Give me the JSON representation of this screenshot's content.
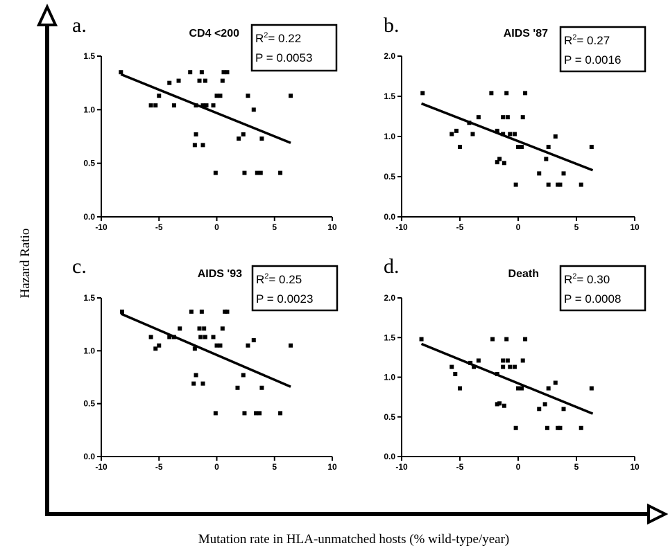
{
  "figure": {
    "ylabel": "Hazard Ratio",
    "xlabel": "Mutation rate in HLA-unmatched hosts  (% wild-type/year)"
  },
  "chart_data": [
    {
      "type": "scatter",
      "panel_letter": "a.",
      "title": "CD4 <200",
      "stats": {
        "r2_prefix": "R",
        "r2_sup": "2",
        "r2_value": "= 0.22",
        "p_text": "P = 0.0053"
      },
      "xlim": [
        -10,
        10
      ],
      "ylim": [
        0.0,
        1.5
      ],
      "xticks": [
        -10,
        -5,
        0,
        5,
        10
      ],
      "yticks": [
        0.0,
        0.5,
        1.0,
        1.5
      ],
      "xtick_labels": [
        "-10",
        "-5",
        "0",
        "5",
        "10"
      ],
      "ytick_labels": [
        "0.0",
        "0.5",
        "1.0",
        "1.5"
      ],
      "points": [
        [
          -8.3,
          1.35
        ],
        [
          -5.7,
          1.04
        ],
        [
          -5.3,
          1.04
        ],
        [
          -5.0,
          1.13
        ],
        [
          -4.1,
          1.25
        ],
        [
          -3.7,
          1.04
        ],
        [
          -3.3,
          1.27
        ],
        [
          -2.3,
          1.35
        ],
        [
          -1.8,
          1.04
        ],
        [
          -1.8,
          0.77
        ],
        [
          -1.9,
          0.67
        ],
        [
          -1.5,
          1.27
        ],
        [
          -1.3,
          1.35
        ],
        [
          -1.2,
          1.04
        ],
        [
          -1.0,
          1.27
        ],
        [
          -0.9,
          1.04
        ],
        [
          -1.2,
          0.67
        ],
        [
          -0.3,
          1.04
        ],
        [
          0.0,
          1.13
        ],
        [
          0.3,
          1.13
        ],
        [
          0.5,
          1.27
        ],
        [
          0.6,
          1.35
        ],
        [
          0.9,
          1.35
        ],
        [
          -0.1,
          0.41
        ],
        [
          1.9,
          0.73
        ],
        [
          2.3,
          0.77
        ],
        [
          2.4,
          0.41
        ],
        [
          2.7,
          1.13
        ],
        [
          3.2,
          1.0
        ],
        [
          3.5,
          0.41
        ],
        [
          3.8,
          0.41
        ],
        [
          3.9,
          0.73
        ],
        [
          5.5,
          0.41
        ],
        [
          6.4,
          1.13
        ]
      ],
      "fit": {
        "x": [
          -8.3,
          6.4
        ],
        "y": [
          1.33,
          0.69
        ]
      }
    },
    {
      "type": "scatter",
      "panel_letter": "b.",
      "title": "AIDS '87",
      "stats": {
        "r2_prefix": "R",
        "r2_sup": "2",
        "r2_value": "= 0.27",
        "p_text": "P = 0.0016"
      },
      "xlim": [
        -10,
        10
      ],
      "ylim": [
        0.0,
        2.0
      ],
      "xticks": [
        -10,
        -5,
        0,
        5,
        10
      ],
      "yticks": [
        0.0,
        0.5,
        1.0,
        1.5,
        2.0
      ],
      "xtick_labels": [
        "-10",
        "-5",
        "0",
        "5",
        "10"
      ],
      "ytick_labels": [
        "0.0",
        "0.5",
        "1.0",
        "1.5",
        "2.0"
      ],
      "points": [
        [
          -8.2,
          1.54
        ],
        [
          -5.7,
          1.03
        ],
        [
          -5.3,
          1.07
        ],
        [
          -5.0,
          0.87
        ],
        [
          -4.2,
          1.17
        ],
        [
          -3.9,
          1.03
        ],
        [
          -3.4,
          1.24
        ],
        [
          -2.3,
          1.54
        ],
        [
          -1.8,
          1.07
        ],
        [
          -1.8,
          0.68
        ],
        [
          -1.6,
          0.72
        ],
        [
          -1.3,
          1.03
        ],
        [
          -1.3,
          1.24
        ],
        [
          -1.2,
          0.67
        ],
        [
          -1.0,
          1.54
        ],
        [
          -0.9,
          1.24
        ],
        [
          -0.7,
          1.03
        ],
        [
          -0.3,
          1.03
        ],
        [
          0.0,
          0.87
        ],
        [
          0.3,
          0.87
        ],
        [
          0.4,
          1.24
        ],
        [
          0.6,
          1.54
        ],
        [
          -0.2,
          0.4
        ],
        [
          1.8,
          0.54
        ],
        [
          2.4,
          0.72
        ],
        [
          2.6,
          0.4
        ],
        [
          2.6,
          0.87
        ],
        [
          3.2,
          1.0
        ],
        [
          3.4,
          0.4
        ],
        [
          3.6,
          0.4
        ],
        [
          3.9,
          0.54
        ],
        [
          5.4,
          0.4
        ],
        [
          6.3,
          0.87
        ]
      ],
      "fit": {
        "x": [
          -8.3,
          6.4
        ],
        "y": [
          1.41,
          0.58
        ]
      }
    },
    {
      "type": "scatter",
      "panel_letter": "c.",
      "title": "AIDS '93",
      "stats": {
        "r2_prefix": "R",
        "r2_sup": "2",
        "r2_value": "= 0.25",
        "p_text": "P = 0.0023"
      },
      "xlim": [
        -10,
        10
      ],
      "ylim": [
        0.0,
        1.5
      ],
      "xticks": [
        -10,
        -5,
        0,
        5,
        10
      ],
      "yticks": [
        0.0,
        0.5,
        1.0,
        1.5
      ],
      "xtick_labels": [
        "-10",
        "-5",
        "0",
        "5",
        "10"
      ],
      "ytick_labels": [
        "0.0",
        "0.5",
        "1.0",
        "1.5"
      ],
      "points": [
        [
          -8.2,
          1.37
        ],
        [
          -5.7,
          1.13
        ],
        [
          -5.3,
          1.02
        ],
        [
          -5.0,
          1.05
        ],
        [
          -4.1,
          1.13
        ],
        [
          -3.7,
          1.13
        ],
        [
          -3.2,
          1.21
        ],
        [
          -2.2,
          1.37
        ],
        [
          -1.9,
          1.02
        ],
        [
          -1.8,
          0.77
        ],
        [
          -2.0,
          0.69
        ],
        [
          -1.5,
          1.21
        ],
        [
          -1.4,
          1.13
        ],
        [
          -1.3,
          1.37
        ],
        [
          -1.1,
          1.21
        ],
        [
          -1.0,
          1.13
        ],
        [
          -1.2,
          0.69
        ],
        [
          -0.3,
          1.13
        ],
        [
          0.0,
          1.05
        ],
        [
          0.3,
          1.05
        ],
        [
          0.5,
          1.21
        ],
        [
          0.7,
          1.37
        ],
        [
          0.9,
          1.37
        ],
        [
          -0.1,
          0.41
        ],
        [
          1.8,
          0.65
        ],
        [
          2.3,
          0.77
        ],
        [
          2.4,
          0.41
        ],
        [
          2.7,
          1.05
        ],
        [
          3.2,
          1.1
        ],
        [
          3.4,
          0.41
        ],
        [
          3.7,
          0.41
        ],
        [
          3.9,
          0.65
        ],
        [
          5.5,
          0.41
        ],
        [
          6.4,
          1.05
        ]
      ],
      "fit": {
        "x": [
          -8.3,
          6.4
        ],
        "y": [
          1.35,
          0.66
        ]
      }
    },
    {
      "type": "scatter",
      "panel_letter": "d.",
      "title": "Death",
      "stats": {
        "r2_prefix": "R",
        "r2_sup": "2",
        "r2_value": "= 0.30",
        "p_text": "P = 0.0008"
      },
      "xlim": [
        -10,
        10
      ],
      "ylim": [
        0.0,
        2.0
      ],
      "xticks": [
        -10,
        -5,
        0,
        5,
        10
      ],
      "yticks": [
        0.0,
        0.5,
        1.0,
        1.5,
        2.0
      ],
      "xtick_labels": [
        "-10",
        "-5",
        "0",
        "5",
        "10"
      ],
      "ytick_labels": [
        "0.0",
        "0.5",
        "1.0",
        "1.5",
        "2.0"
      ],
      "points": [
        [
          -8.3,
          1.48
        ],
        [
          -5.7,
          1.13
        ],
        [
          -5.4,
          1.04
        ],
        [
          -5.0,
          0.86
        ],
        [
          -4.1,
          1.18
        ],
        [
          -3.8,
          1.13
        ],
        [
          -3.4,
          1.21
        ],
        [
          -2.2,
          1.48
        ],
        [
          -1.8,
          1.04
        ],
        [
          -1.8,
          0.66
        ],
        [
          -1.6,
          0.67
        ],
        [
          -1.3,
          1.21
        ],
        [
          -1.3,
          1.13
        ],
        [
          -1.2,
          0.64
        ],
        [
          -1.0,
          1.48
        ],
        [
          -0.9,
          1.21
        ],
        [
          -0.7,
          1.13
        ],
        [
          -0.3,
          1.13
        ],
        [
          0.0,
          0.86
        ],
        [
          0.3,
          0.86
        ],
        [
          0.4,
          1.21
        ],
        [
          0.6,
          1.48
        ],
        [
          -0.2,
          0.36
        ],
        [
          1.8,
          0.6
        ],
        [
          2.3,
          0.66
        ],
        [
          2.5,
          0.36
        ],
        [
          2.6,
          0.86
        ],
        [
          3.2,
          0.93
        ],
        [
          3.4,
          0.36
        ],
        [
          3.6,
          0.36
        ],
        [
          3.9,
          0.6
        ],
        [
          5.4,
          0.36
        ],
        [
          6.3,
          0.86
        ]
      ],
      "fit": {
        "x": [
          -8.3,
          6.4
        ],
        "y": [
          1.42,
          0.54
        ]
      }
    }
  ]
}
